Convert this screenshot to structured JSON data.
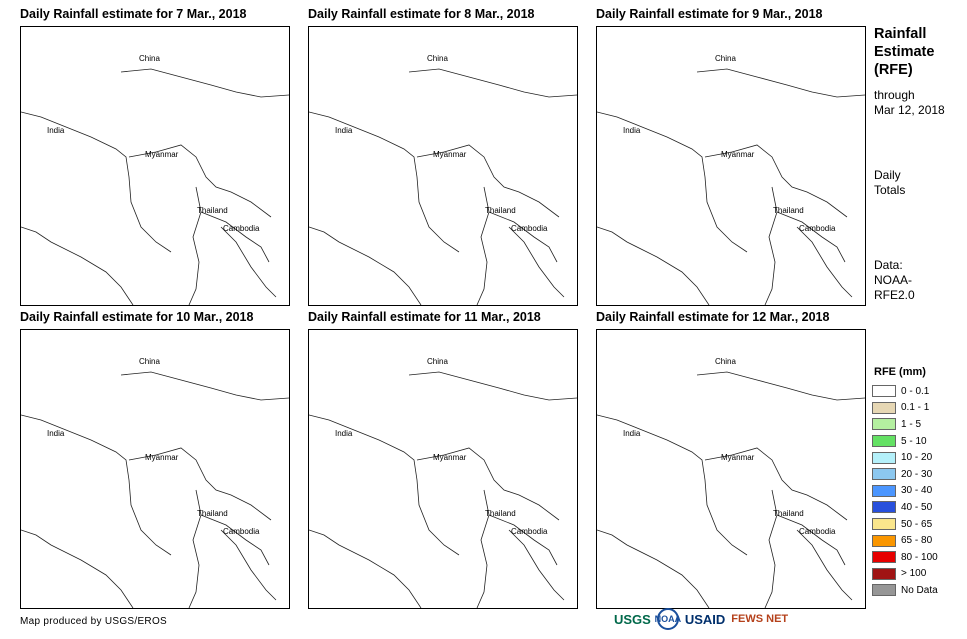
{
  "panels": [
    {
      "title": "Daily Rainfall estimate for 7 Mar., 2018"
    },
    {
      "title": "Daily Rainfall estimate for 8 Mar., 2018"
    },
    {
      "title": "Daily Rainfall estimate for 9 Mar., 2018"
    },
    {
      "title": "Daily Rainfall estimate for 10 Mar., 2018"
    },
    {
      "title": "Daily Rainfall estimate for 11 Mar., 2018"
    },
    {
      "title": "Daily Rainfall estimate for 12 Mar., 2018"
    }
  ],
  "map_labels": {
    "china": "China",
    "india": "India",
    "myanmar": "Myanmar",
    "thailand": "Thailand",
    "cambodia": "Cambodia"
  },
  "sidebar": {
    "title_lines": [
      "Rainfall",
      "Estimate",
      "(RFE)"
    ],
    "through_lines": [
      "through",
      "Mar 12, 2018"
    ],
    "daily_lines": [
      "Daily",
      "Totals"
    ],
    "data_lines": [
      "Data:",
      "NOAA-",
      "RFE2.0"
    ]
  },
  "legend": {
    "title": "RFE (mm)",
    "items": [
      {
        "label": "0 - 0.1",
        "color": "#ffffff"
      },
      {
        "label": "0.1 - 1",
        "color": "#e6d7b4"
      },
      {
        "label": "1 - 5",
        "color": "#b4f0a0"
      },
      {
        "label": "5 - 10",
        "color": "#64e164"
      },
      {
        "label": "10 - 20",
        "color": "#b4f0fa"
      },
      {
        "label": "20 - 30",
        "color": "#8cc8f0"
      },
      {
        "label": "30 - 40",
        "color": "#4b96ff"
      },
      {
        "label": "40 - 50",
        "color": "#2850dc"
      },
      {
        "label": "50 - 65",
        "color": "#fae68c"
      },
      {
        "label": "65 - 80",
        "color": "#fa9600"
      },
      {
        "label": "80 - 100",
        "color": "#e60000"
      },
      {
        "label": "> 100",
        "color": "#a01414"
      },
      {
        "label": "No Data",
        "color": "#969696"
      }
    ]
  },
  "footer": {
    "credit": "Map produced by USGS/EROS",
    "logos": [
      "USGS",
      "NOAA",
      "USAID",
      "FEWS NET"
    ]
  }
}
